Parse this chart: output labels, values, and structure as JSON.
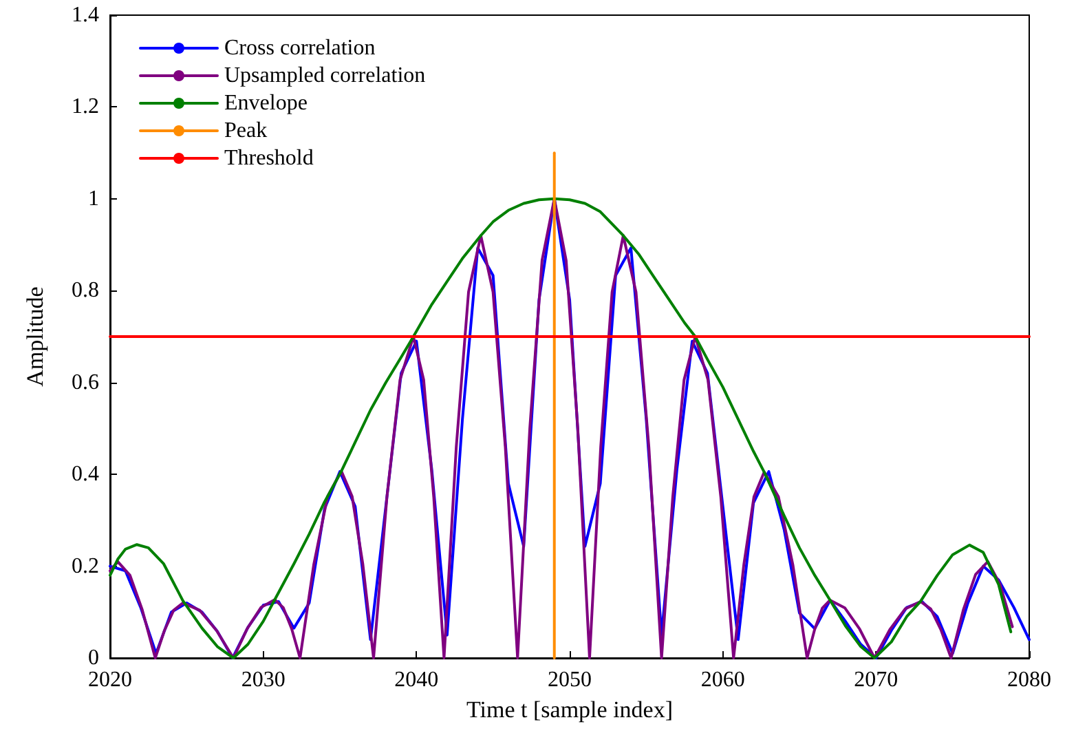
{
  "chart_data": {
    "type": "line",
    "xlabel": "Time t [sample index]",
    "ylabel": "Amplitude",
    "xlim": [
      2020,
      2080
    ],
    "xticks": [
      2020,
      2030,
      2040,
      2050,
      2060,
      2070,
      2080
    ],
    "ylim": [
      0,
      1.4
    ],
    "yticks": [
      0,
      0.2,
      0.4,
      0.6,
      0.8,
      1,
      1.2,
      1.4
    ],
    "grid": false,
    "legend": "top left",
    "marker": "none",
    "line_style": "solid",
    "series": [
      {
        "name": "Cross correlation",
        "color": "#0000ff",
        "x": [
          2020,
          2021,
          2022,
          2023,
          2024,
          2025,
          2026,
          2027,
          2028,
          2029,
          2030,
          2031,
          2032,
          2033,
          2034,
          2035,
          2036,
          2037,
          2038,
          2039,
          2040,
          2041,
          2042,
          2043,
          2044,
          2045,
          2046,
          2047,
          2048,
          2049,
          2050,
          2051,
          2052,
          2053,
          2054,
          2055,
          2056,
          2057,
          2058,
          2059,
          2060,
          2061,
          2062,
          2063,
          2064,
          2065,
          2066,
          2067,
          2068,
          2069,
          2070,
          2071,
          2072,
          2073,
          2074,
          2075,
          2076,
          2077,
          2078,
          2079,
          2080
        ],
        "values": [
          0.2,
          0.19,
          0.11,
          0.01,
          0.1,
          0.12,
          0.1,
          0.058,
          0.0,
          0.067,
          0.115,
          0.123,
          0.065,
          0.12,
          0.325,
          0.406,
          0.33,
          0.04,
          0.33,
          0.62,
          0.69,
          0.41,
          0.05,
          0.52,
          0.893,
          0.833,
          0.38,
          0.243,
          0.78,
          1.0,
          0.78,
          0.243,
          0.38,
          0.833,
          0.893,
          0.52,
          0.05,
          0.41,
          0.69,
          0.62,
          0.33,
          0.04,
          0.338,
          0.406,
          0.28,
          0.098,
          0.064,
          0.126,
          0.08,
          0.03,
          0.0,
          0.06,
          0.11,
          0.123,
          0.09,
          0.01,
          0.12,
          0.2,
          0.17,
          0.11,
          0.04
        ]
      },
      {
        "name": "Upsampled correlation",
        "color": "#800080",
        "x": [
          2020,
          2020.5,
          2021.3,
          2022.1,
          2022.95,
          2023.55,
          2024.15,
          2024.75,
          2025.85,
          2026.95,
          2028.05,
          2028.95,
          2029.85,
          2030.75,
          2031.3,
          2031.85,
          2032.4,
          2033.3,
          2034.2,
          2035.1,
          2035.8,
          2036.5,
          2037.2,
          2038.07,
          2038.93,
          2039.8,
          2040.47,
          2041.13,
          2041.8,
          2042.6,
          2043.4,
          2044.2,
          2045.0,
          2045.8,
          2046.6,
          2047.4,
          2048.2,
          2049,
          2049.77,
          2050.53,
          2051.3,
          2052.03,
          2052.77,
          2053.5,
          2054.33,
          2055.17,
          2056.0,
          2056.73,
          2057.47,
          2058.2,
          2059.03,
          2059.87,
          2060.7,
          2061.37,
          2062.03,
          2062.7,
          2063.63,
          2064.57,
          2065.5,
          2066.0,
          2066.5,
          2067.0,
          2067.97,
          2068.93,
          2069.9,
          2070.9,
          2071.9,
          2072.9,
          2073.57,
          2074.23,
          2074.9,
          2075.7,
          2076.5,
          2077.3,
          2078.1,
          2078.9
        ],
        "values": [
          0.19,
          0.21,
          0.18,
          0.105,
          0,
          0.06,
          0.104,
          0.12,
          0.104,
          0.06,
          0,
          0.064,
          0.11,
          0.127,
          0.11,
          0.064,
          0,
          0.204,
          0.352,
          0.407,
          0.352,
          0.204,
          0,
          0.35,
          0.606,
          0.7,
          0.606,
          0.35,
          0,
          0.46,
          0.797,
          0.92,
          0.797,
          0.46,
          0,
          0.5,
          0.866,
          1.0,
          0.866,
          0.5,
          0,
          0.46,
          0.797,
          0.92,
          0.797,
          0.46,
          0,
          0.35,
          0.606,
          0.7,
          0.606,
          0.35,
          0,
          0.203,
          0.351,
          0.405,
          0.351,
          0.203,
          0,
          0.063,
          0.109,
          0.126,
          0.109,
          0.063,
          0,
          0.062,
          0.107,
          0.123,
          0.107,
          0.062,
          0,
          0.105,
          0.182,
          0.21,
          0.16,
          0.068
        ]
      },
      {
        "name": "Envelope",
        "color": "#008000",
        "x": [
          2020,
          2020.5,
          2021,
          2021.75,
          2022.5,
          2023.5,
          2024.75,
          2026,
          2027,
          2028.05,
          2029,
          2030,
          2030.75,
          2032,
          2033,
          2034,
          2035.1,
          2036,
          2037,
          2038,
          2039,
          2039.8,
          2041,
          2042,
          2043,
          2044.2,
          2045,
          2046,
          2047,
          2048,
          2049,
          2050,
          2051,
          2052,
          2053.5,
          2054.5,
          2055.5,
          2056.5,
          2057.5,
          2058.2,
          2059,
          2060,
          2061,
          2062,
          2062.7,
          2064,
          2065,
          2066,
          2067,
          2068,
          2069,
          2069.9,
          2071,
          2072,
          2072.9,
          2074,
          2075,
          2076.1,
          2077,
          2078,
          2078.8
        ],
        "values": [
          0.18,
          0.215,
          0.237,
          0.247,
          0.24,
          0.205,
          0.125,
          0.065,
          0.025,
          0,
          0.03,
          0.08,
          0.127,
          0.205,
          0.27,
          0.34,
          0.407,
          0.47,
          0.54,
          0.6,
          0.655,
          0.7,
          0.77,
          0.82,
          0.87,
          0.92,
          0.95,
          0.975,
          0.99,
          0.998,
          1.0,
          0.998,
          0.99,
          0.972,
          0.92,
          0.88,
          0.83,
          0.78,
          0.73,
          0.7,
          0.65,
          0.59,
          0.52,
          0.45,
          0.405,
          0.31,
          0.24,
          0.18,
          0.126,
          0.07,
          0.025,
          0,
          0.035,
          0.09,
          0.123,
          0.18,
          0.225,
          0.246,
          0.23,
          0.16,
          0.057
        ]
      },
      {
        "name": "Peak",
        "color": "#ff8c00",
        "x": [
          2049,
          2049
        ],
        "values": [
          0,
          1.1
        ]
      },
      {
        "name": "Threshold",
        "color": "#ff0000",
        "x": [
          2020,
          2080
        ],
        "values": [
          0.7,
          0.7
        ]
      }
    ]
  }
}
